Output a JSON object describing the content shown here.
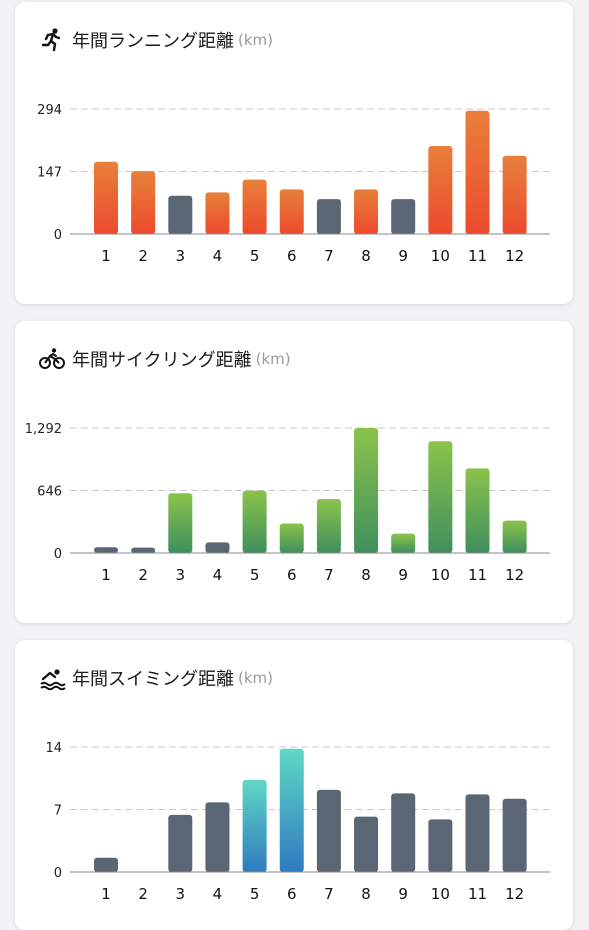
{
  "cards": [
    {
      "id": "running",
      "icon": "runner-icon",
      "title": "年間ランニング距離",
      "unit": "(km)",
      "chart_data": {
        "type": "bar",
        "categories": [
          "1",
          "2",
          "3",
          "4",
          "5",
          "6",
          "7",
          "8",
          "9",
          "10",
          "11",
          "12"
        ],
        "values": [
          170,
          148,
          90,
          98,
          128,
          105,
          82,
          105,
          82,
          207,
          290,
          184
        ],
        "highlighted": [
          true,
          true,
          false,
          true,
          true,
          true,
          false,
          true,
          false,
          true,
          true,
          true
        ],
        "yticks": [
          0,
          147,
          294
        ],
        "ytick_labels": [
          "0",
          "147",
          "294"
        ],
        "ylim": [
          0,
          294
        ],
        "grid": true,
        "colors": {
          "gradient_top": "#e8803a",
          "gradient_bottom": "#ec4a2e",
          "muted": "#5a6673"
        }
      }
    },
    {
      "id": "cycling",
      "icon": "bicycle-icon",
      "title": "年間サイクリング距離",
      "unit": "(km)",
      "chart_data": {
        "type": "bar",
        "categories": [
          "1",
          "2",
          "3",
          "4",
          "5",
          "6",
          "7",
          "8",
          "9",
          "10",
          "11",
          "12"
        ],
        "values": [
          60,
          55,
          618,
          110,
          645,
          305,
          558,
          1292,
          200,
          1155,
          875,
          335
        ],
        "highlighted": [
          false,
          false,
          true,
          false,
          true,
          true,
          true,
          true,
          true,
          true,
          true,
          true
        ],
        "yticks": [
          0,
          646,
          1292
        ],
        "ytick_labels": [
          "0",
          "646",
          "1,292"
        ],
        "ylim": [
          0,
          1292
        ],
        "grid": true,
        "colors": {
          "gradient_top": "#8bc34a",
          "gradient_bottom": "#3f8f5e",
          "muted": "#5a6673"
        }
      }
    },
    {
      "id": "swimming",
      "icon": "swimmer-icon",
      "title": "年間スイミング距離",
      "unit": "(km)",
      "chart_data": {
        "type": "bar",
        "categories": [
          "1",
          "2",
          "3",
          "4",
          "5",
          "6",
          "7",
          "8",
          "9",
          "10",
          "11",
          "12"
        ],
        "values": [
          1.6,
          0,
          6.4,
          7.8,
          10.3,
          13.8,
          9.2,
          6.2,
          8.8,
          5.9,
          8.7,
          8.2
        ],
        "highlighted": [
          false,
          false,
          false,
          false,
          true,
          true,
          false,
          false,
          false,
          false,
          false,
          false
        ],
        "yticks": [
          0,
          7,
          14
        ],
        "ytick_labels": [
          "0",
          "7",
          "14"
        ],
        "ylim": [
          0,
          14
        ],
        "grid": true,
        "colors": {
          "gradient_top": "#5fd8c5",
          "gradient_bottom": "#2f7ac0",
          "muted": "#5a6673"
        }
      }
    }
  ]
}
